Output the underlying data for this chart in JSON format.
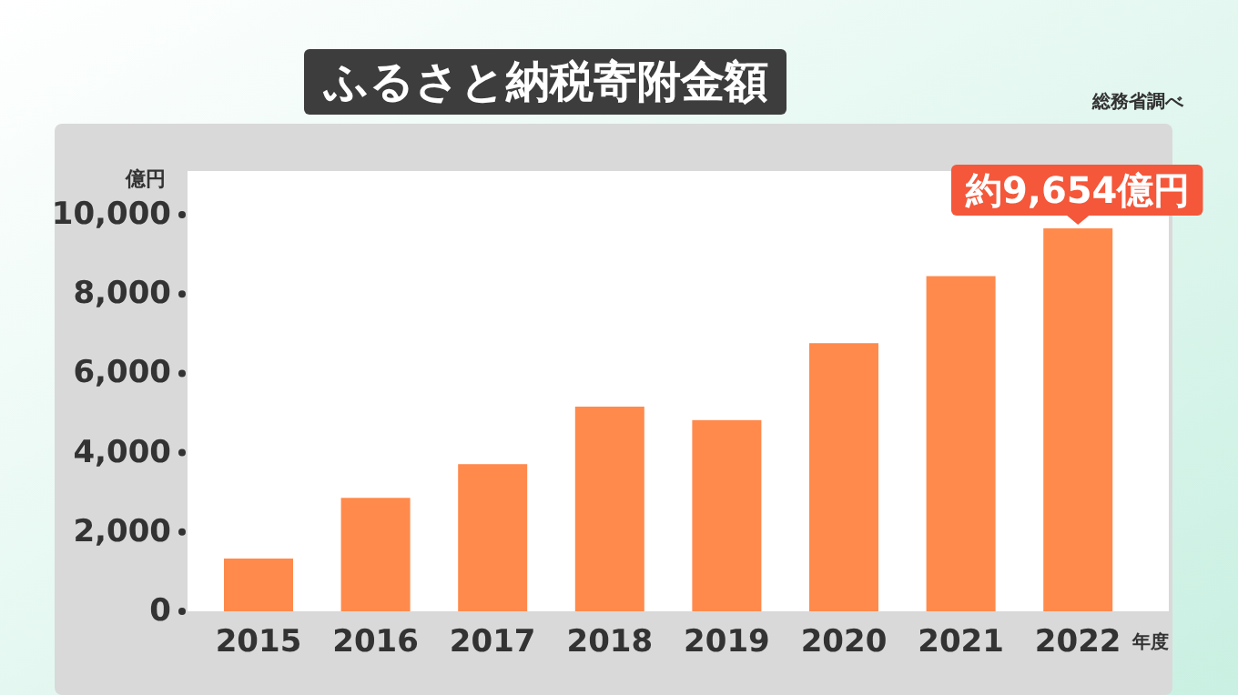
{
  "chart_data": {
    "type": "bar",
    "title": "ふるさと納税寄附金額",
    "ylabel": "億円",
    "xlabel": "年度",
    "annotations": [
      "総務省調べ"
    ],
    "categories": [
      "2015",
      "2016",
      "2017",
      "2018",
      "2019",
      "2020",
      "2021",
      "2022"
    ],
    "values": [
      1330,
      2860,
      3710,
      5160,
      4820,
      6760,
      8450,
      9654
    ],
    "value_labels": [
      null,
      null,
      null,
      null,
      null,
      null,
      null,
      "約9,654億円"
    ],
    "color": "#ff8a4c",
    "ylim": [
      0,
      11100
    ],
    "yticks": [
      {
        "value": 0,
        "label": "0"
      },
      {
        "value": 2000,
        "label": "2,000"
      },
      {
        "value": 4000,
        "label": "4,000"
      },
      {
        "value": 6000,
        "label": "6,000"
      },
      {
        "value": 8000,
        "label": "8,000"
      },
      {
        "value": 10000,
        "label": "10,000"
      }
    ],
    "grid": false
  }
}
